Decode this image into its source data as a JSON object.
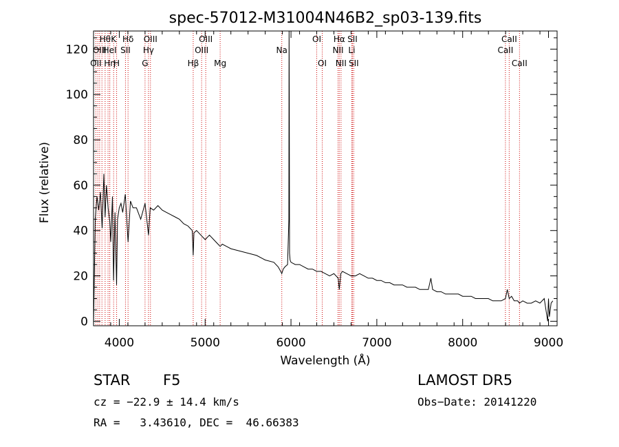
{
  "chart_data": {
    "type": "line",
    "title": "spec-57012-M31004N46B2_sp03-139.fits",
    "xlabel": "Wavelength (Å)",
    "ylabel": "Flux (relative)",
    "xlim": [
      3700,
      9100
    ],
    "ylim": [
      -2,
      128
    ],
    "xticks": [
      4000,
      5000,
      6000,
      7000,
      8000,
      9000
    ],
    "yticks": [
      0,
      20,
      40,
      60,
      80,
      100,
      120
    ],
    "grid": false,
    "line_color": "#000000",
    "marker_color": "#cc0000",
    "series": [
      {
        "x": [
          3700,
          3720,
          3740,
          3760,
          3780,
          3800,
          3820,
          3835,
          3850,
          3870,
          3889,
          3900,
          3920,
          3933,
          3950,
          3968,
          3980,
          4000,
          4020,
          4040,
          4070,
          4102,
          4130,
          4160,
          4200,
          4250,
          4300,
          4340,
          4360,
          4400,
          4450,
          4500,
          4550,
          4600,
          4650,
          4700,
          4750,
          4800,
          4850,
          4861,
          4870,
          4900,
          4950,
          5000,
          5050,
          5100,
          5150,
          5175,
          5200,
          5250,
          5300,
          5400,
          5500,
          5600,
          5700,
          5800,
          5850,
          5880,
          5893,
          5910,
          5930,
          5960,
          5975,
          5978,
          5980,
          5983,
          5990,
          6000,
          6050,
          6100,
          6150,
          6200,
          6250,
          6300,
          6350,
          6400,
          6450,
          6500,
          6550,
          6563,
          6580,
          6600,
          6650,
          6700,
          6750,
          6800,
          6850,
          6900,
          6950,
          7000,
          7050,
          7100,
          7150,
          7200,
          7250,
          7300,
          7350,
          7400,
          7450,
          7500,
          7550,
          7600,
          7630,
          7650,
          7700,
          7750,
          7800,
          7850,
          7900,
          7950,
          8000,
          8050,
          8100,
          8150,
          8200,
          8250,
          8300,
          8350,
          8400,
          8450,
          8498,
          8520,
          8542,
          8570,
          8600,
          8640,
          8662,
          8700,
          8750,
          8800,
          8850,
          8900,
          8950,
          8990,
          9000,
          9010,
          9030,
          9050
        ],
        "y": [
          -2,
          45,
          55,
          49,
          57,
          41,
          65,
          46,
          60,
          50,
          44,
          35,
          55,
          18,
          48,
          16,
          45,
          50,
          52,
          48,
          56,
          35,
          53,
          50,
          50,
          45,
          52,
          38,
          50,
          49,
          51,
          49,
          48,
          47,
          46,
          45,
          43,
          42,
          40,
          29,
          39,
          40,
          38,
          36,
          38,
          36,
          34,
          33,
          34,
          33,
          32,
          31,
          30,
          29,
          27,
          26,
          24,
          22,
          21,
          23,
          24,
          25,
          45,
          128,
          100,
          30,
          27,
          26,
          25,
          25,
          24,
          23,
          23,
          22,
          22,
          21,
          20,
          21,
          19,
          14,
          21,
          22,
          21,
          20,
          20,
          21,
          20,
          19,
          19,
          18,
          18,
          17,
          17,
          16,
          16,
          16,
          15,
          15,
          15,
          14,
          14,
          14,
          19,
          14,
          13,
          13,
          12,
          12,
          12,
          12,
          11,
          11,
          11,
          10,
          10,
          10,
          10,
          9,
          9,
          9,
          10,
          14,
          10,
          11,
          9,
          9,
          8,
          9,
          8,
          8,
          9,
          8,
          10,
          0,
          10,
          2,
          8,
          9
        ]
      }
    ],
    "line_markers": [
      {
        "x": 3727,
        "label": "OII",
        "row": 3
      },
      {
        "x": 3750,
        "label": "",
        "row": 0
      },
      {
        "x": 3771,
        "label": "OIII",
        "row": 2
      },
      {
        "x": 3798,
        "label": "",
        "row": 0
      },
      {
        "x": 3835,
        "label": "Hθ",
        "row": 1
      },
      {
        "x": 3869,
        "label": "",
        "row": 0
      },
      {
        "x": 3889,
        "label": "HeI",
        "row": 2
      },
      {
        "x": 3889,
        "label": "Hη",
        "row": 3
      },
      {
        "x": 3934,
        "label": "K",
        "row": 1
      },
      {
        "x": 3969,
        "label": "H",
        "row": 3
      },
      {
        "x": 4072,
        "label": "SII",
        "row": 2
      },
      {
        "x": 4102,
        "label": "Hδ",
        "row": 1
      },
      {
        "x": 4300,
        "label": "G",
        "row": 3
      },
      {
        "x": 4340,
        "label": "Hγ",
        "row": 2
      },
      {
        "x": 4363,
        "label": "OIII",
        "row": 1
      },
      {
        "x": 4861,
        "label": "Hβ",
        "row": 3
      },
      {
        "x": 4959,
        "label": "OIII",
        "row": 2
      },
      {
        "x": 5007,
        "label": "OIII",
        "row": 1
      },
      {
        "x": 5175,
        "label": "Mg",
        "row": 3
      },
      {
        "x": 5893,
        "label": "Na",
        "row": 2
      },
      {
        "x": 6300,
        "label": "OI",
        "row": 1
      },
      {
        "x": 6364,
        "label": "OI",
        "row": 3
      },
      {
        "x": 6548,
        "label": "NII",
        "row": 2
      },
      {
        "x": 6563,
        "label": "Hα",
        "row": 1
      },
      {
        "x": 6583,
        "label": "NII",
        "row": 3
      },
      {
        "x": 6708,
        "label": "Li",
        "row": 2
      },
      {
        "x": 6716,
        "label": "SII",
        "row": 1
      },
      {
        "x": 6731,
        "label": "SII",
        "row": 3
      },
      {
        "x": 8498,
        "label": "CaII",
        "row": 2
      },
      {
        "x": 8542,
        "label": "CaII",
        "row": 1
      },
      {
        "x": 8662,
        "label": "CaII",
        "row": 3
      }
    ]
  },
  "footer": {
    "object_class": "STAR",
    "subclass": "F5",
    "survey": "LAMOST DR5",
    "cz_line": "cz = −22.9 ± 14.4 km/s",
    "obs_date": "Obs−Date: 20141220",
    "radec_line": "RA =   3.43610, DEC =  46.66383"
  }
}
